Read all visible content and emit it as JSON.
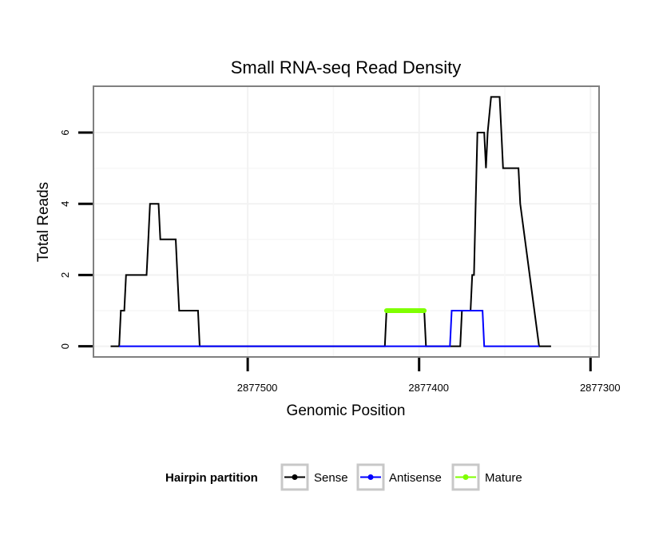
{
  "chart_data": {
    "type": "line",
    "title": "Small RNA-seq Read Density",
    "xlabel": "Genomic Position",
    "ylabel": "Total Reads",
    "x_reversed": true,
    "xlim": [
      2877590,
      2877295
    ],
    "ylim": [
      -0.3,
      7.3
    ],
    "x_ticks": [
      2877500,
      2877400,
      2877300
    ],
    "x_tick_labels": [
      "2877500",
      "2877400",
      "2877300"
    ],
    "y_ticks": [
      0,
      2,
      4,
      6
    ],
    "y_tick_labels": [
      "0",
      "2",
      "4",
      "6"
    ],
    "grid": true,
    "legend": {
      "title": "Hairpin partition",
      "placement": "bottom",
      "entries": [
        {
          "label": "Sense",
          "color": "#000000"
        },
        {
          "label": "Antisense",
          "color": "#0000ff"
        },
        {
          "label": "Mature",
          "color": "#7fff00"
        }
      ]
    },
    "series": [
      {
        "name": "Sense",
        "color": "#000000",
        "x": [
          2877580,
          2877575,
          2877574,
          2877573,
          2877572,
          2877571,
          2877570,
          2877559,
          2877558,
          2877557,
          2877556,
          2877552,
          2877551,
          2877550,
          2877542,
          2877541,
          2877540,
          2877529,
          2877528,
          2877527,
          2877420,
          2877419,
          2877418,
          2877397,
          2877396,
          2877395,
          2877376,
          2877375,
          2877374,
          2877371,
          2877370,
          2877369,
          2877368,
          2877367,
          2877366,
          2877365,
          2877364,
          2877362,
          2877361,
          2877360,
          2877358,
          2877357,
          2877356,
          2877353,
          2877352,
          2877351,
          2877343,
          2877342,
          2877341,
          2877330,
          2877329,
          2877328,
          2877323
        ],
        "y": [
          0,
          0,
          1,
          1,
          1,
          2,
          2,
          2,
          3,
          4,
          4,
          4,
          3,
          3,
          3,
          2,
          1,
          1,
          0,
          0,
          0,
          1,
          1,
          1,
          0,
          0,
          0,
          1,
          1,
          1,
          1,
          2,
          2,
          4,
          6,
          6,
          6,
          6,
          5,
          6,
          7,
          7,
          7,
          7,
          6,
          5,
          5,
          5,
          4,
          0,
          0,
          0,
          0
        ]
      },
      {
        "name": "Antisense",
        "color": "#0000ff",
        "x": [
          2877575,
          2877527,
          2877420,
          2877397,
          2877382,
          2877381,
          2877380,
          2877375,
          2877374,
          2877369,
          2877363,
          2877362,
          2877361,
          2877330
        ],
        "y": [
          0,
          0,
          0,
          0,
          0,
          1,
          1,
          1,
          1,
          1,
          1,
          0,
          0,
          0
        ]
      },
      {
        "name": "Mature",
        "color": "#7fff00",
        "x": [
          2877419,
          2877397
        ],
        "y": [
          1,
          1
        ]
      }
    ]
  }
}
